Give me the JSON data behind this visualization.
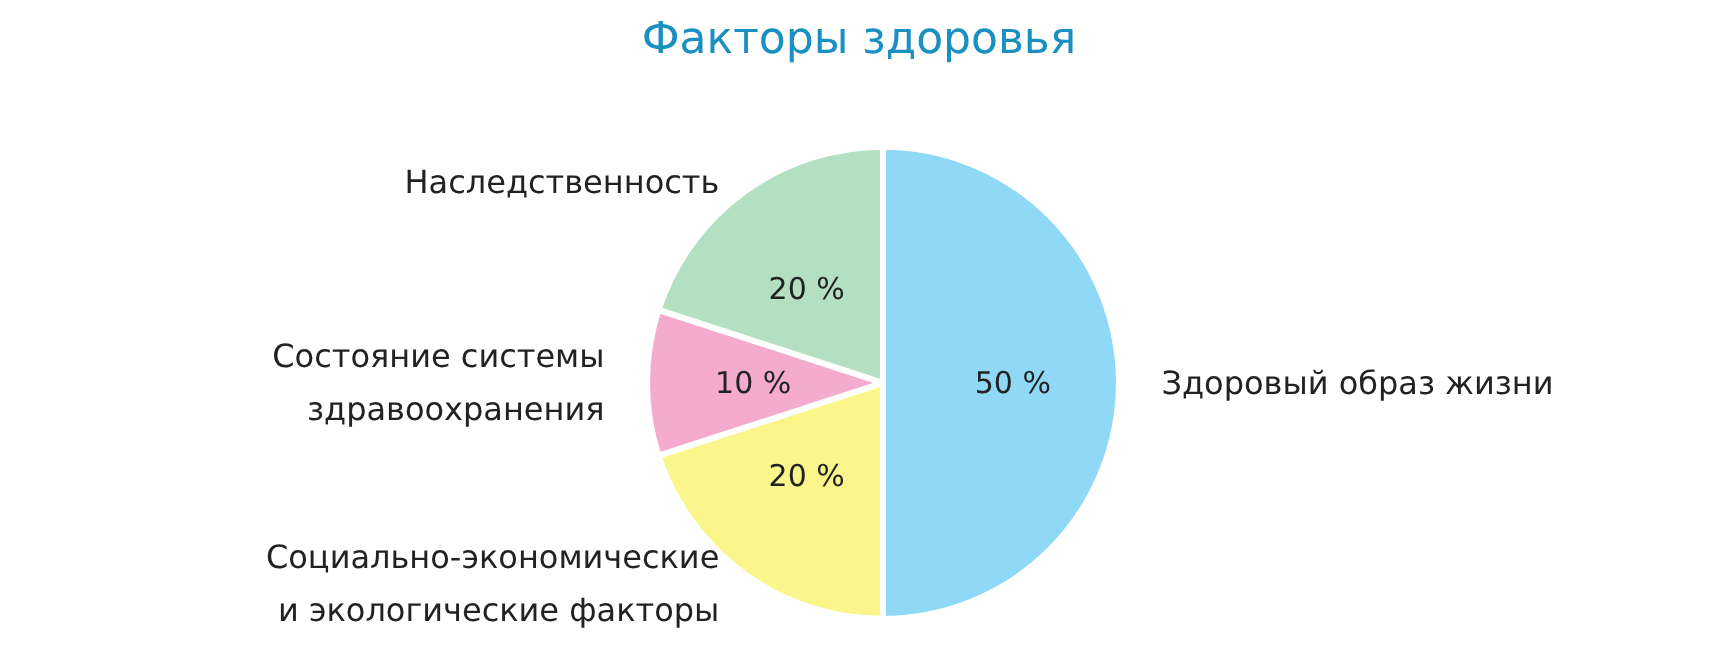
{
  "chart_data": {
    "type": "pie",
    "title": "Факторы здоровья",
    "categories": [
      "Здоровый образ жизни",
      "Социально-экономические и экологические факторы",
      "Состояние системы здравоохранения",
      "Наследственность"
    ],
    "values": [
      50,
      20,
      10,
      20
    ],
    "colors": [
      "#8fd9f6",
      "#fbf68c",
      "#f4abcd",
      "#b4e0c2"
    ],
    "value_labels": [
      "50 %",
      "20 %",
      "10 %",
      "20 %"
    ]
  }
}
